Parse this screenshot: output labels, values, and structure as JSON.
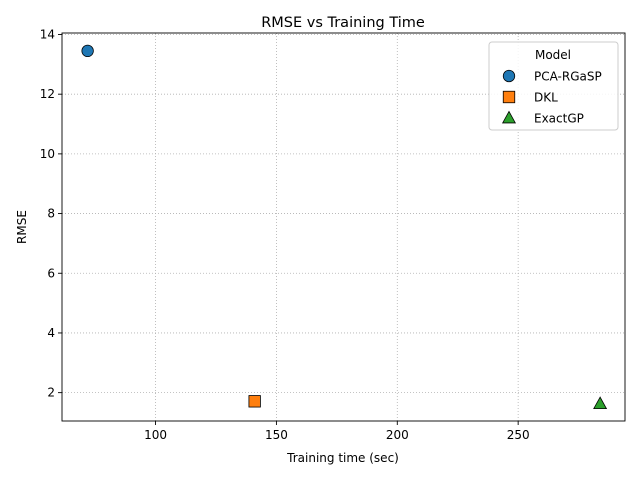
{
  "chart_data": {
    "type": "scatter",
    "title": "RMSE vs Training Time",
    "xlabel": "Training time (sec)",
    "ylabel": "RMSE",
    "xlim": [
      61.3,
      294.2
    ],
    "ylim": [
      1.05,
      14.05
    ],
    "xticks": [
      100,
      150,
      200,
      250
    ],
    "yticks": [
      2,
      4,
      6,
      8,
      10,
      12,
      14
    ],
    "grid": true,
    "legend": {
      "title": "Model",
      "placement": "top-right"
    },
    "series": [
      {
        "name": "PCA-RGaSP",
        "x": 71.9,
        "y": 13.45,
        "marker": "circle",
        "color": "#1f77b4"
      },
      {
        "name": "DKL",
        "x": 141.0,
        "y": 1.71,
        "marker": "square",
        "color": "#ff7f0e"
      },
      {
        "name": "ExactGP",
        "x": 283.9,
        "y": 1.63,
        "marker": "triangle",
        "color": "#2ca02c"
      }
    ]
  }
}
